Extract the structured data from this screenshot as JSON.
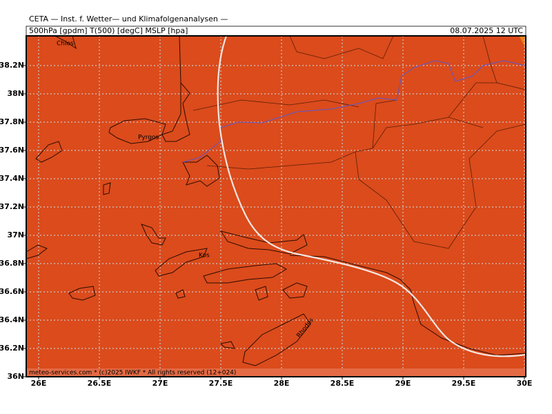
{
  "header": {
    "title": "CETA — Inst. f. Wetter— und Klimafolgenanalysen —",
    "fields": "500hPa [gpdm] T(500) [degC] MSLP [hpa]",
    "datetime": "08.07.2025 12 UTC"
  },
  "axes": {
    "longitude_labels": [
      "26E",
      "26.5E",
      "27E",
      "27.5E",
      "28E",
      "28.5E",
      "29E",
      "29.5E",
      "30E"
    ],
    "latitude_labels": [
      "36N",
      "36.2N",
      "36.4N",
      "36.6N",
      "36.8N",
      "37N",
      "37.2N",
      "37.4N",
      "37.6N",
      "37.8N",
      "38N",
      "38.2N"
    ]
  },
  "places": [
    "Chios",
    "Pyrgos",
    "Kos",
    "Rhodos"
  ],
  "footer": "meteo-services.com * (c)2025 IWKF * All rights reserved (12+024)"
}
